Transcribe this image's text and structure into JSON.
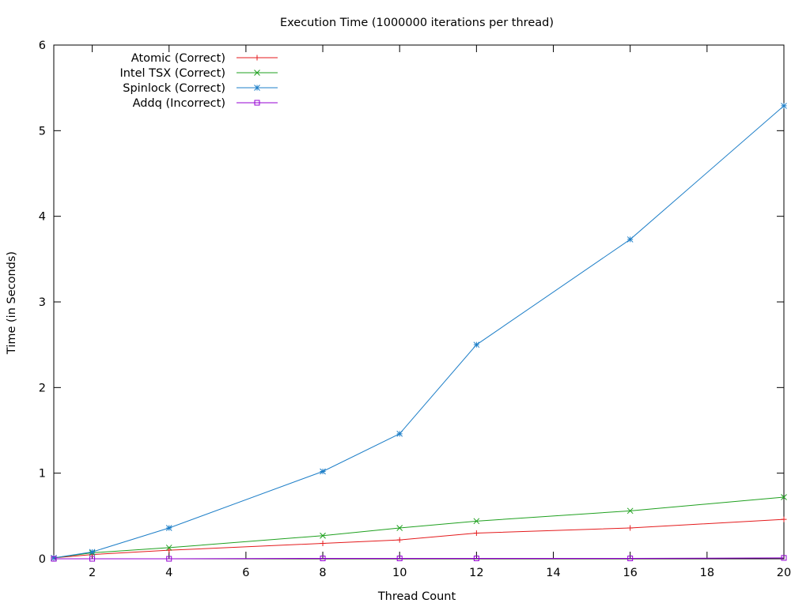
{
  "chart_data": {
    "type": "line",
    "title": "Execution Time (1000000 iterations per thread)",
    "xlabel": "Thread Count",
    "ylabel": "Time (in Seconds)",
    "xlim": [
      1,
      20
    ],
    "ylim": [
      0,
      6
    ],
    "xticks": [
      2,
      4,
      6,
      8,
      10,
      12,
      14,
      16,
      18,
      20
    ],
    "yticks": [
      0,
      1,
      2,
      3,
      4,
      5,
      6
    ],
    "legend_position": "top-left",
    "grid": false,
    "x": [
      1,
      2,
      4,
      8,
      10,
      12,
      16,
      20
    ],
    "series": [
      {
        "name": "Atomic (Correct)",
        "color": "#e41a1c",
        "marker": "plus",
        "values": [
          0.01,
          0.05,
          0.1,
          0.18,
          0.22,
          0.3,
          0.36,
          0.46
        ]
      },
      {
        "name": "Intel TSX (Correct)",
        "color": "#1fa01f",
        "marker": "cross",
        "values": [
          0.01,
          0.07,
          0.13,
          0.27,
          0.36,
          0.44,
          0.56,
          0.72
        ]
      },
      {
        "name": "Spinlock (Correct)",
        "color": "#1e7fc8",
        "marker": "star",
        "values": [
          0.01,
          0.08,
          0.36,
          1.02,
          1.46,
          2.5,
          3.73,
          5.29
        ]
      },
      {
        "name": "Addq (Incorrect)",
        "color": "#9400d3",
        "marker": "square",
        "values": [
          0.0,
          0.0,
          0.0,
          0.005,
          0.005,
          0.005,
          0.005,
          0.01
        ]
      }
    ]
  }
}
